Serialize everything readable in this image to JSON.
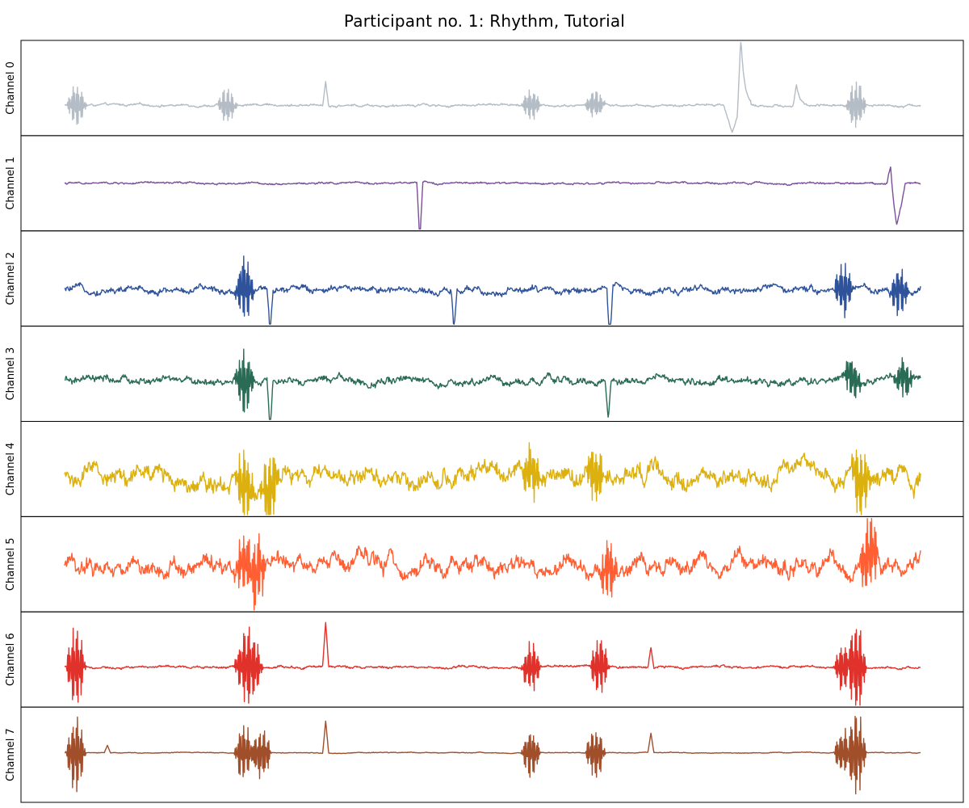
{
  "chart_data": {
    "type": "line",
    "title": "Participant no. 1: Rhythm, Tutorial",
    "grid": false,
    "xticks": "hidden",
    "yticks": "hidden",
    "x_range_fraction": [
      0.0,
      1.0
    ],
    "y_range_fraction": [
      0.0,
      1.0
    ],
    "series": [
      {
        "name": "Channel 0",
        "color": "#b4bcc5",
        "baseline": 0.32,
        "noise": 0.012,
        "events": [
          {
            "x": 0.014,
            "amp": 0.24,
            "kind": "burst"
          },
          {
            "x": 0.19,
            "amp": 0.2,
            "kind": "burst"
          },
          {
            "x": 0.305,
            "amp": 0.26,
            "kind": "spike"
          },
          {
            "x": 0.545,
            "amp": 0.18,
            "kind": "burst"
          },
          {
            "x": 0.62,
            "amp": 0.18,
            "kind": "burst"
          },
          {
            "x": 0.78,
            "amp": -0.28,
            "kind": "dip"
          },
          {
            "x": 0.79,
            "amp": 0.72,
            "kind": "peak"
          },
          {
            "x": 0.855,
            "amp": 0.22,
            "kind": "peak"
          },
          {
            "x": 0.925,
            "amp": 0.28,
            "kind": "burst"
          }
        ]
      },
      {
        "name": "Channel 1",
        "color": "#7b4f9a",
        "baseline": 0.5,
        "noise": 0.01,
        "events": [
          {
            "x": 0.415,
            "amp": -0.62,
            "kind": "spike"
          },
          {
            "x": 0.965,
            "amp": 0.32,
            "kind": "peak"
          },
          {
            "x": 0.972,
            "amp": -0.48,
            "kind": "dip"
          }
        ]
      },
      {
        "name": "Channel 2",
        "color": "#2f539b",
        "baseline": 0.38,
        "noise": 0.035,
        "events": [
          {
            "x": 0.21,
            "amp": 0.38,
            "kind": "burst"
          },
          {
            "x": 0.24,
            "amp": -0.46,
            "kind": "spike"
          },
          {
            "x": 0.455,
            "amp": -0.42,
            "kind": "spike"
          },
          {
            "x": 0.637,
            "amp": -0.62,
            "kind": "spike"
          },
          {
            "x": 0.91,
            "amp": 0.32,
            "kind": "burst"
          },
          {
            "x": 0.975,
            "amp": 0.28,
            "kind": "burst"
          }
        ]
      },
      {
        "name": "Channel 3",
        "color": "#2a6b55",
        "baseline": 0.42,
        "noise": 0.04,
        "events": [
          {
            "x": 0.21,
            "amp": 0.38,
            "kind": "burst"
          },
          {
            "x": 0.24,
            "amp": -0.58,
            "kind": "spike"
          },
          {
            "x": 0.635,
            "amp": -0.4,
            "kind": "spike"
          },
          {
            "x": 0.92,
            "amp": 0.24,
            "kind": "burst"
          },
          {
            "x": 0.98,
            "amp": 0.22,
            "kind": "burst"
          }
        ]
      },
      {
        "name": "Channel 4",
        "color": "#dcb00e",
        "baseline": 0.42,
        "noise": 0.1,
        "events": [
          {
            "x": 0.21,
            "amp": 0.42,
            "kind": "burst"
          },
          {
            "x": 0.24,
            "amp": 0.45,
            "kind": "burst"
          },
          {
            "x": 0.545,
            "amp": 0.3,
            "kind": "burst"
          },
          {
            "x": 0.62,
            "amp": 0.32,
            "kind": "burst"
          },
          {
            "x": 0.93,
            "amp": 0.48,
            "kind": "burst"
          }
        ]
      },
      {
        "name": "Channel 5",
        "color": "#ff5f33",
        "baseline": 0.48,
        "noise": 0.09,
        "events": [
          {
            "x": 0.21,
            "amp": 0.35,
            "kind": "burst"
          },
          {
            "x": 0.225,
            "amp": 0.4,
            "kind": "burst"
          },
          {
            "x": 0.635,
            "amp": 0.36,
            "kind": "burst"
          },
          {
            "x": 0.94,
            "amp": 0.48,
            "kind": "burst"
          }
        ]
      },
      {
        "name": "Channel 6",
        "color": "#e0322a",
        "baseline": 0.42,
        "noise": 0.012,
        "events": [
          {
            "x": 0.013,
            "amp": 0.48,
            "kind": "burst"
          },
          {
            "x": 0.21,
            "amp": 0.38,
            "kind": "burst"
          },
          {
            "x": 0.22,
            "amp": 0.36,
            "kind": "burst"
          },
          {
            "x": 0.305,
            "amp": 0.46,
            "kind": "spike"
          },
          {
            "x": 0.545,
            "amp": 0.3,
            "kind": "burst"
          },
          {
            "x": 0.625,
            "amp": 0.34,
            "kind": "burst"
          },
          {
            "x": 0.685,
            "amp": 0.22,
            "kind": "spike"
          },
          {
            "x": 0.91,
            "amp": 0.28,
            "kind": "burst"
          },
          {
            "x": 0.925,
            "amp": 0.52,
            "kind": "burst"
          }
        ]
      },
      {
        "name": "Channel 7",
        "color": "#a14f2b",
        "baseline": 0.52,
        "noise": 0.004,
        "events": [
          {
            "x": 0.013,
            "amp": 0.46,
            "kind": "burst"
          },
          {
            "x": 0.05,
            "amp": 0.08,
            "kind": "spike"
          },
          {
            "x": 0.21,
            "amp": 0.36,
            "kind": "burst"
          },
          {
            "x": 0.23,
            "amp": 0.32,
            "kind": "burst"
          },
          {
            "x": 0.305,
            "amp": 0.34,
            "kind": "spike"
          },
          {
            "x": 0.545,
            "amp": 0.28,
            "kind": "burst"
          },
          {
            "x": 0.62,
            "amp": 0.3,
            "kind": "burst"
          },
          {
            "x": 0.685,
            "amp": 0.2,
            "kind": "spike"
          },
          {
            "x": 0.91,
            "amp": 0.28,
            "kind": "burst"
          },
          {
            "x": 0.925,
            "amp": 0.5,
            "kind": "burst"
          }
        ]
      }
    ]
  }
}
